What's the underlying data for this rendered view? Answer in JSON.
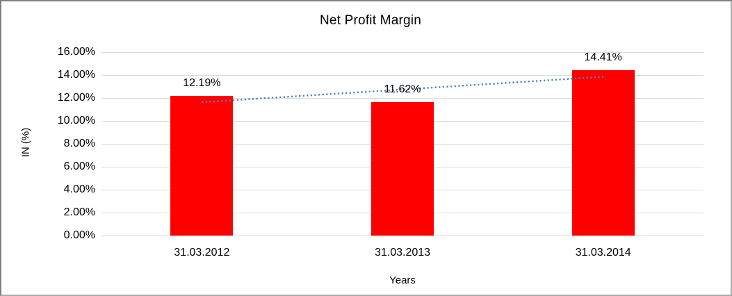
{
  "chart_data": {
    "type": "bar",
    "title": "Net Profit Margin",
    "xlabel": "Years",
    "ylabel": "IN (%)",
    "categories": [
      "31.03.2012",
      "31.03.2013",
      "31.03.2014"
    ],
    "values": [
      12.19,
      11.62,
      14.41
    ],
    "data_labels": [
      "12.19%",
      "11.62%",
      "14.41%"
    ],
    "ylim": [
      0,
      16
    ],
    "ytick_step": 2,
    "ytick_labels": [
      "0.00%",
      "2.00%",
      "4.00%",
      "6.00%",
      "8.00%",
      "10.00%",
      "12.00%",
      "14.00%",
      "16.00%"
    ],
    "grid": true,
    "legend": "none",
    "trendline": "linear",
    "colors": {
      "bar": "#ff0000",
      "trendline": "#4f81bd",
      "gridline": "#d9d9d9",
      "text": "#000000",
      "background": "#ffffff"
    }
  }
}
